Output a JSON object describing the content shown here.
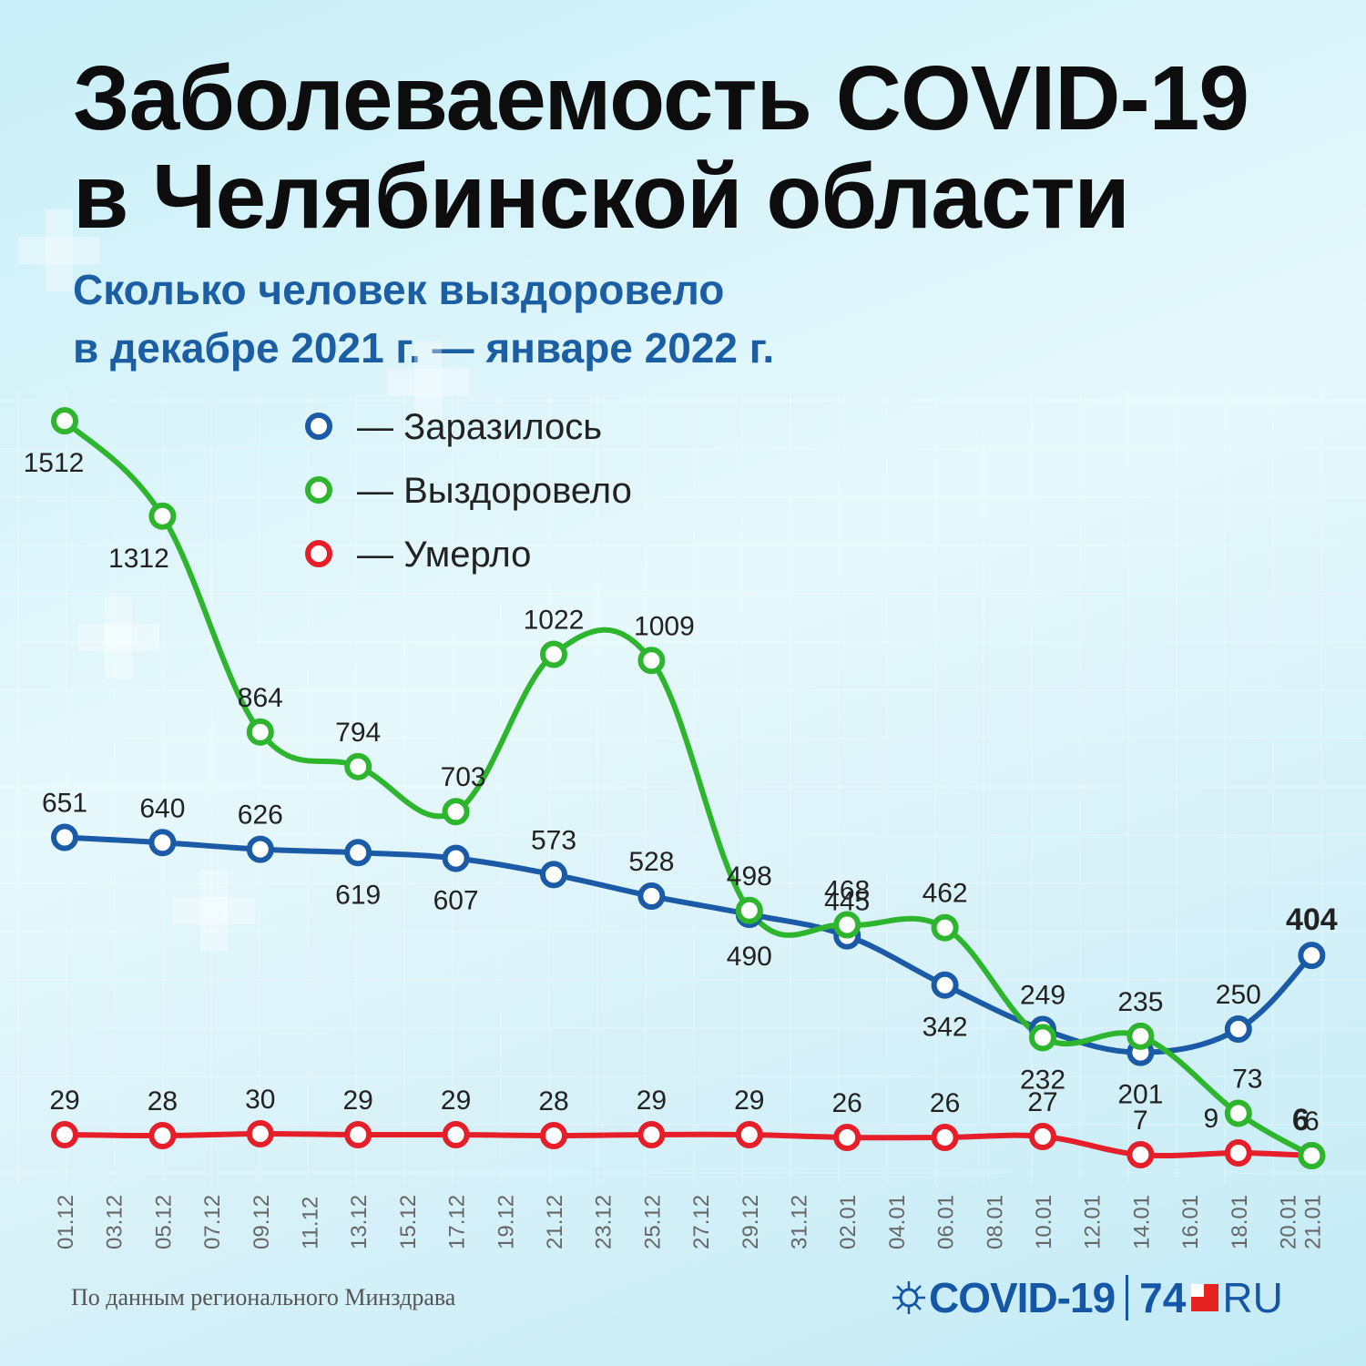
{
  "header": {
    "title_line1": "Заболеваемость COVID-19",
    "title_line2": "в Челябинской области",
    "subtitle_line1": "Сколько человек выздоровело",
    "subtitle_line2": "в декабре 2021 г. — январе 2022 г."
  },
  "footer": {
    "source": "По данным регионального Минздрава",
    "logo_covid": "COVID-19",
    "logo_74": "74",
    "logo_ru": "RU"
  },
  "chart_data": {
    "type": "line",
    "x_ticks": [
      "01.12",
      "03.12",
      "05.12",
      "07.12",
      "09.12",
      "11.12",
      "13.12",
      "15.12",
      "17.12",
      "19.12",
      "21.12",
      "23.12",
      "25.12",
      "27.12",
      "29.12",
      "31.12",
      "02.01",
      "04.01",
      "06.01",
      "08.01",
      "10.01",
      "12.01",
      "14.01",
      "16.01",
      "18.01",
      "20.01",
      "21.01"
    ],
    "series": [
      {
        "name": "Заразилось",
        "color": "#1a5aa6",
        "points": [
          {
            "x": "01.12",
            "y": 651
          },
          {
            "x": "05.12",
            "y": 640
          },
          {
            "x": "09.12",
            "y": 626
          },
          {
            "x": "13.12",
            "y": 619
          },
          {
            "x": "17.12",
            "y": 607
          },
          {
            "x": "21.12",
            "y": 573
          },
          {
            "x": "25.12",
            "y": 528
          },
          {
            "x": "29.12",
            "y": 490
          },
          {
            "x": "02.01",
            "y": 445
          },
          {
            "x": "06.01",
            "y": 342
          },
          {
            "x": "10.01",
            "y": 249
          },
          {
            "x": "14.01",
            "y": 201
          },
          {
            "x": "18.01",
            "y": 250
          },
          {
            "x": "21.01",
            "y": 404
          }
        ]
      },
      {
        "name": "Выздоровело",
        "color": "#2eb52e",
        "points": [
          {
            "x": "01.12",
            "y": 1512
          },
          {
            "x": "05.12",
            "y": 1312
          },
          {
            "x": "09.12",
            "y": 864
          },
          {
            "x": "13.12",
            "y": 794
          },
          {
            "x": "17.12",
            "y": 703
          },
          {
            "x": "21.12",
            "y": 1022
          },
          {
            "x": "25.12",
            "y": 1009
          },
          {
            "x": "29.12",
            "y": 498
          },
          {
            "x": "02.01",
            "y": 468
          },
          {
            "x": "06.01",
            "y": 462
          },
          {
            "x": "10.01",
            "y": 232
          },
          {
            "x": "14.01",
            "y": 235
          },
          {
            "x": "18.01",
            "y": 73
          },
          {
            "x": "21.01",
            "y": 6
          }
        ]
      },
      {
        "name": "Умерло",
        "color": "#e51e2a",
        "points": [
          {
            "x": "01.12",
            "y": 29
          },
          {
            "x": "05.12",
            "y": 28
          },
          {
            "x": "09.12",
            "y": 30
          },
          {
            "x": "13.12",
            "y": 29
          },
          {
            "x": "17.12",
            "y": 29
          },
          {
            "x": "21.12",
            "y": 28
          },
          {
            "x": "25.12",
            "y": 29
          },
          {
            "x": "29.12",
            "y": 29
          },
          {
            "x": "02.01",
            "y": 26
          },
          {
            "x": "06.01",
            "y": 26
          },
          {
            "x": "10.01",
            "y": 27
          },
          {
            "x": "14.01",
            "y": 7
          },
          {
            "x": "18.01",
            "y": 9
          },
          {
            "x": "21.01",
            "y": 6
          }
        ]
      }
    ],
    "legend": {
      "position": "top-center",
      "items": [
        "— Заразилось",
        "— Выздоровело",
        "— Умерло"
      ]
    },
    "emphasized_labels": {
      "Заразилось": "404",
      "Умерло": "6"
    }
  }
}
